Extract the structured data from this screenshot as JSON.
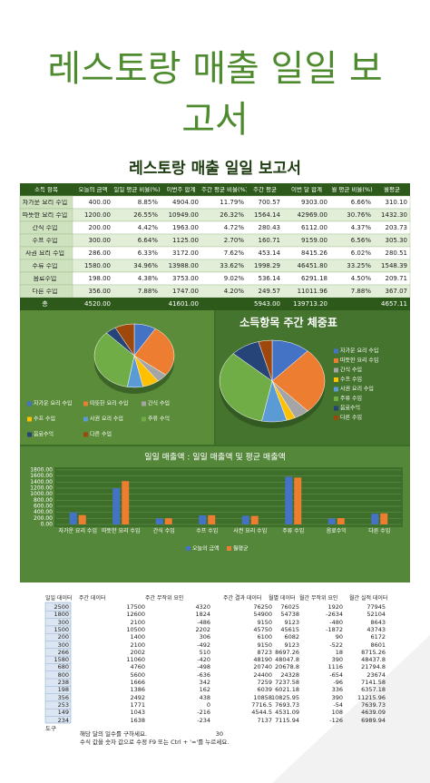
{
  "header": {
    "title": "레스토랑 매출 일일 보고서"
  },
  "sheet": {
    "title": "레스토랑 매출 일일 보고서",
    "table": {
      "columns": [
        "소득 항목",
        "오늘의 금액",
        "일일 평균 비율(%)",
        "이번주 합계",
        "주간 평균 비율(%)",
        "주간 평균",
        "이번 달 합계",
        "월 평균 비율(%)",
        "월평균"
      ],
      "rows": [
        [
          "자가운 요리 수입",
          "400.00",
          "8.85%",
          "4904.00",
          "11.79%",
          "700.57",
          "9303.00",
          "6.66%",
          "310.10"
        ],
        [
          "따뜻한 요리 수입",
          "1200.00",
          "26.55%",
          "10949.00",
          "26.32%",
          "1564.14",
          "42969.00",
          "30.76%",
          "1432.30"
        ],
        [
          "간식 수입",
          "200.00",
          "4.42%",
          "1963.00",
          "4.72%",
          "280.43",
          "6112.00",
          "4.37%",
          "203.73"
        ],
        [
          "수프 수입",
          "300.00",
          "6.64%",
          "1125.00",
          "2.70%",
          "160.71",
          "9159.00",
          "6.56%",
          "305.30"
        ],
        [
          "사권 요리 수입",
          "286.00",
          "6.33%",
          "3172.00",
          "7.62%",
          "453.14",
          "8415.26",
          "6.02%",
          "280.51"
        ],
        [
          "주류 수입",
          "1580.00",
          "34.96%",
          "13988.00",
          "33.62%",
          "1998.29",
          "46451.80",
          "33.25%",
          "1548.39"
        ],
        [
          "음료수입",
          "198.00",
          "4.38%",
          "3753.00",
          "9.02%",
          "536.14",
          "6291.18",
          "4.50%",
          "209.71"
        ],
        [
          "다른 수입",
          "356.00",
          "7.88%",
          "1747.00",
          "4.20%",
          "249.57",
          "11011.96",
          "7.88%",
          "367.07"
        ]
      ],
      "total": {
        "label": "총",
        "daily": "4520.00",
        "weekly": "41601.00",
        "weekly_avg": "5943.00",
        "monthly": "139713.20",
        "monthly_avg": "4657.11"
      }
    }
  },
  "charts": [
    {
      "type": "pie",
      "colors": [
        "#4472c4",
        "#ed7d31",
        "#a5a5a5",
        "#ffc000",
        "#5b9bd5",
        "#70ad47",
        "#264478",
        "#9e480e"
      ],
      "legend": [
        "자가운 요리 수입",
        "따뜻한 요리 수입",
        "간식 수입",
        "수프 수입",
        "사권 요리 수입",
        "주류 수익",
        "음료수익",
        "다른 수입"
      ],
      "values": [
        400,
        1200,
        200,
        300,
        286,
        1580,
        198,
        356
      ]
    },
    {
      "type": "pie",
      "title": "소득항목 주간 체중표",
      "colors": [
        "#4472c4",
        "#ed7d31",
        "#a5a5a5",
        "#ffc000",
        "#5b9bd5",
        "#70ad47",
        "#264478",
        "#9e480e"
      ],
      "legend": [
        "자가운 요리 수입",
        "따뜻한 요리 수입",
        "간식 수입",
        "수프 수입",
        "사권 요리 수입",
        "주류 수입",
        "음료수익",
        "다른 수입"
      ],
      "values": [
        4904,
        10949,
        1963,
        1125,
        3172,
        13988,
        3753,
        1747
      ]
    },
    {
      "type": "bar",
      "title": "일일 매출액 : 일일 매출액 및 평균 매출액",
      "categories": [
        "자가운 요리 수입",
        "따뜻한 요리 수입",
        "간식 수입",
        "수프 수입",
        "사권 요리 수입",
        "주류 수입",
        "음료수익",
        "다른 수입"
      ],
      "series": [
        {
          "name": "오늘의 금액",
          "color": "#4472c4",
          "values": [
            400,
            1200,
            200,
            300,
            286,
            1580,
            198,
            356
          ]
        },
        {
          "name": "월평균",
          "color": "#ed7d31",
          "values": [
            310.1,
            1432.3,
            203.73,
            305.3,
            280.51,
            1548.39,
            209.71,
            367.07
          ]
        }
      ],
      "ylim": [
        0,
        1800
      ],
      "yticks": [
        {
          "value": 0,
          "label": "0.00"
        },
        {
          "value": 200,
          "label": "200.00"
        },
        {
          "value": 400,
          "label": "400.00"
        },
        {
          "value": 600,
          "label": "600.00"
        },
        {
          "value": 800,
          "label": "800.00"
        },
        {
          "value": 1000,
          "label": "1000.00"
        },
        {
          "value": 1200,
          "label": "1200.00"
        },
        {
          "value": 1400,
          "label": "1400.00"
        },
        {
          "value": 1600,
          "label": "1600.00"
        },
        {
          "value": 1800,
          "label": "1800.00"
        }
      ],
      "grid": true
    }
  ],
  "data_block": {
    "columns": [
      "일일 데이터",
      "주간 데이터",
      "주간 무작위 요인",
      "주간 결과 데이터",
      "월별 데이터",
      "월간 무작위 요인",
      "월간 실적 데이터"
    ],
    "rows": [
      [
        "2500",
        "17500",
        "4320",
        "76250",
        "76025",
        "1920",
        "77945"
      ],
      [
        "1800",
        "12600",
        "1824",
        "54900",
        "54738",
        "-2634",
        "52104"
      ],
      [
        "300",
        "2100",
        "-486",
        "9150",
        "9123",
        "-480",
        "8643"
      ],
      [
        "1500",
        "10500",
        "2202",
        "45750",
        "45615",
        "-1872",
        "43743"
      ],
      [
        "200",
        "1400",
        "306",
        "6100",
        "6082",
        "90",
        "6172"
      ],
      [
        "300",
        "2100",
        "-492",
        "9150",
        "9123",
        "-522",
        "8601"
      ],
      [
        "266",
        "2002",
        "510",
        "8723",
        "8697.26",
        "18",
        "8715.26"
      ],
      [
        "1580",
        "11060",
        "-420",
        "48190",
        "48047.8",
        "390",
        "48437.8"
      ],
      [
        "680",
        "4760",
        "-498",
        "20740",
        "20678.8",
        "1116",
        "21794.8"
      ],
      [
        "800",
        "5600",
        "-636",
        "24400",
        "24328",
        "-654",
        "23674"
      ],
      [
        "238",
        "1666",
        "342",
        "7259",
        "7237.58",
        "-96",
        "7141.58"
      ],
      [
        "198",
        "1386",
        "162",
        "6039",
        "6021.18",
        "336",
        "6357.18"
      ],
      [
        "356",
        "2492",
        "438",
        "10858",
        "10825.95",
        "390",
        "11215.96"
      ],
      [
        "253",
        "1771",
        "0",
        "7716.5",
        "7693.73",
        "-54",
        "7639.73"
      ],
      [
        "149",
        "1043",
        "-216",
        "4544.5",
        "4531.09",
        "108",
        "4639.09"
      ],
      [
        "234",
        "1638",
        "-234",
        "7137",
        "7115.94",
        "-126",
        "6989.94"
      ]
    ]
  },
  "footer": {
    "label": "도구",
    "days_prompt": "해당 달의 일수를 구하세요.",
    "days": "30",
    "note": "수식 값을 숫자 값으로 수정 F9 또는 Ctrl + '='를 누르세요."
  }
}
